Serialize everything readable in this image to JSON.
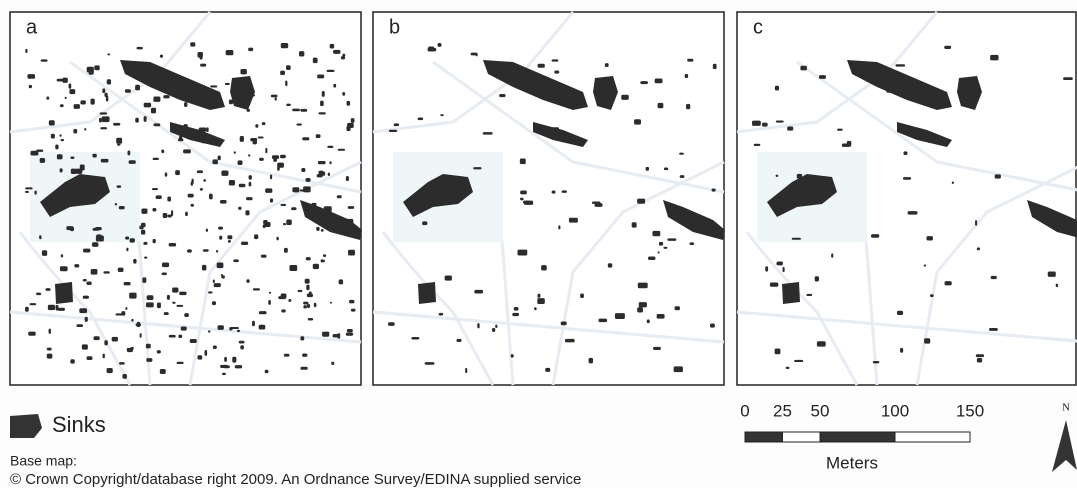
{
  "panels": [
    {
      "label": "a"
    },
    {
      "label": "b"
    },
    {
      "label": "c"
    }
  ],
  "legend": {
    "label": "Sinks"
  },
  "credits": {
    "title": "Base map:",
    "text": "© Crown Copyright/database right 2009. An Ordnance Survey/EDINA supplied service"
  },
  "scale_bar": {
    "ticks": [
      0,
      25,
      50,
      100,
      150
    ],
    "unit": "Meters"
  },
  "north_arrow": {
    "label": "N"
  }
}
